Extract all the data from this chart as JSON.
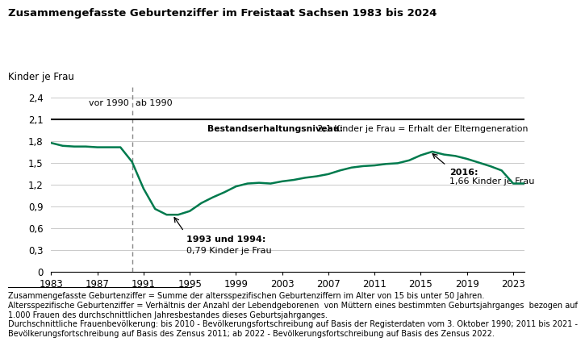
{
  "title": "Zusammengefasste Geburtenziffer im Freistaat Sachsen 1983 bis 2024",
  "ylabel": "Kinder je Frau",
  "xlim": [
    1983,
    2024
  ],
  "ylim": [
    0,
    2.55
  ],
  "yticks": [
    0,
    0.3,
    0.6,
    0.9,
    1.2,
    1.5,
    1.8,
    2.1,
    2.4
  ],
  "xticks": [
    1983,
    1987,
    1991,
    1995,
    1999,
    2003,
    2007,
    2011,
    2015,
    2019,
    2023
  ],
  "line_color": "#007a4d",
  "replacement_level": 2.1,
  "dashed_line_x": 1990,
  "years": [
    1983,
    1984,
    1985,
    1986,
    1987,
    1988,
    1989,
    1990,
    1991,
    1992,
    1993,
    1994,
    1995,
    1996,
    1997,
    1998,
    1999,
    2000,
    2001,
    2002,
    2003,
    2004,
    2005,
    2006,
    2007,
    2008,
    2009,
    2010,
    2011,
    2012,
    2013,
    2014,
    2015,
    2016,
    2017,
    2018,
    2019,
    2020,
    2021,
    2022,
    2023,
    2024
  ],
  "values": [
    1.78,
    1.74,
    1.73,
    1.73,
    1.72,
    1.72,
    1.72,
    1.52,
    1.15,
    0.87,
    0.79,
    0.79,
    0.84,
    0.95,
    1.03,
    1.1,
    1.18,
    1.22,
    1.23,
    1.22,
    1.25,
    1.27,
    1.3,
    1.32,
    1.35,
    1.4,
    1.44,
    1.46,
    1.47,
    1.49,
    1.5,
    1.54,
    1.61,
    1.66,
    1.62,
    1.6,
    1.56,
    1.51,
    1.46,
    1.4,
    1.22,
    1.22
  ],
  "label_vor1990": "vor 1990",
  "label_ab1990": "ab 1990",
  "replacement_label_bold": "Bestandserhaltungsniveau:",
  "replacement_label_normal": " 2,1 Kinder je Frau = Erhalt der Elterngeneration",
  "ann1993_text_bold": "1993 und 1994:",
  "ann1993_text_normal": "0,79 Kinder je Frau",
  "ann2016_text_bold": "2016:",
  "ann2016_text_normal": "1,66 Kinder je Frau",
  "footnote_line1": "Zusammengefasste Geburtenziffer = Summe der altersspezifischen Geburtenziffern im Alter von 15 bis unter 50 Jahren.",
  "footnote_line2": "Altersspezifische Geburtenziffer = Verhältnis der Anzahl der Lebendgeborenen  von Müttern eines bestimmten Geburtsjahrganges  bezogen auf",
  "footnote_line3": "1.000 Frauen des durchschnittlichen Jahresbestandes dieses Geburtsjahrganges.",
  "footnote_line4": "Durchschnittliche Frauenbevölkerung: bis 2010 - Bevölkerungsfortschreibung auf Basis der Registerdaten vom 3. Oktober 1990; 2011 bis 2021 -",
  "footnote_line5": "Bevölkerungsfortschreibung auf Basis des Zensus 2011; ab 2022 - Bevölkerungsfortschreibung auf Basis des Zensus 2022.",
  "bg_color": "#ffffff"
}
